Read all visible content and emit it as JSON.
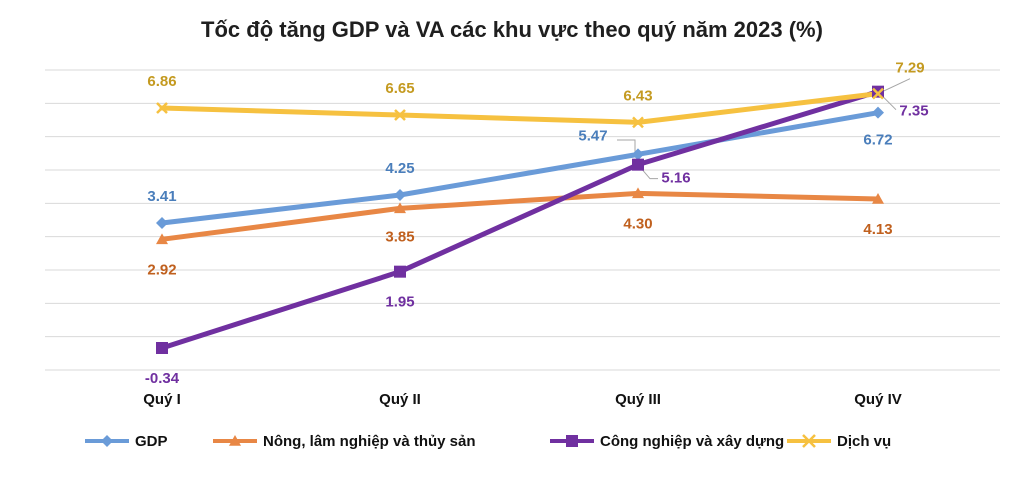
{
  "chart_data": {
    "type": "line",
    "title": "Tốc độ tăng GDP và VA các khu vực theo quý năm 2023 (%)",
    "categories": [
      "Quý I",
      "Quý II",
      "Quý III",
      "Quý IV"
    ],
    "ylim": [
      -1,
      8
    ],
    "grid": true,
    "legend_position": "bottom",
    "series": [
      {
        "name": "GDP",
        "color": "#6a9bd8",
        "marker": "diamond",
        "values": [
          3.41,
          4.25,
          5.47,
          6.72
        ],
        "labels": [
          "3.41",
          "4.25",
          "5.47",
          "6.72"
        ]
      },
      {
        "name": "Nông, lâm nghiệp và thủy sản",
        "color": "#e88745",
        "marker": "triangle",
        "values": [
          2.92,
          3.85,
          4.3,
          4.13
        ],
        "labels": [
          "2.92",
          "3.85",
          "4.30",
          "4.13"
        ]
      },
      {
        "name": "Công nghiệp và xây dựng",
        "color": "#7030a0",
        "marker": "square",
        "values": [
          -0.34,
          1.95,
          5.16,
          7.35
        ],
        "labels": [
          "-0.34",
          "1.95",
          "5.16",
          "7.35"
        ]
      },
      {
        "name": "Dịch vụ",
        "color": "#f6c140",
        "marker": "x",
        "values": [
          6.86,
          6.65,
          6.43,
          7.29
        ],
        "labels": [
          "6.86",
          "6.65",
          "6.43",
          "7.29"
        ]
      }
    ]
  },
  "label_colors": {
    "GDP": "#4a7ebb",
    "Nông, lâm nghiệp và thủy sản": "#c0601e",
    "Công nghiệp và xây dựng": "#7030a0",
    "Dịch vụ": "#c49a20"
  }
}
